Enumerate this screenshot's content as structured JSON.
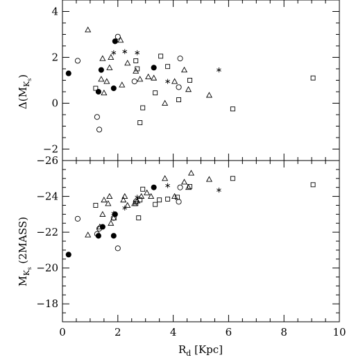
{
  "chart_data": [
    {
      "type": "scatter",
      "panel": "top",
      "ylabel": "Δ(M",
      "ylabel_sub": "K",
      "ylabel_subsub": "s",
      "ylabel_tail": ")",
      "xlim": [
        0,
        10
      ],
      "ylim": [
        -2.5,
        4.5
      ],
      "y_ticks_major": [
        -2,
        0,
        2,
        4
      ],
      "y_ticks_minor": [
        -2.5,
        -1.5,
        -1,
        -0.5,
        0.5,
        1,
        1.5,
        2.5,
        3,
        3.5,
        4.5
      ],
      "y_tick_labels": [
        "−2",
        "0",
        "2",
        "4"
      ],
      "series": [
        {
          "marker": "filled-circle",
          "points": [
            [
              0.22,
              1.3
            ],
            [
              1.3,
              0.5
            ],
            [
              1.4,
              1.45
            ],
            [
              1.85,
              0.65
            ],
            [
              1.9,
              2.7
            ],
            [
              3.3,
              1.55
            ]
          ]
        },
        {
          "marker": "open-circle",
          "points": [
            [
              0.55,
              1.85
            ],
            [
              1.25,
              -0.6
            ],
            [
              1.33,
              -1.15
            ],
            [
              2.0,
              2.9
            ],
            [
              2.6,
              0.95
            ],
            [
              4.2,
              0.7
            ],
            [
              4.25,
              1.95
            ]
          ]
        },
        {
          "marker": "triangle",
          "points": [
            [
              0.92,
              3.2
            ],
            [
              1.4,
              1.05
            ],
            [
              1.45,
              1.95
            ],
            [
              1.5,
              0.45
            ],
            [
              1.6,
              0.95
            ],
            [
              1.7,
              1.55
            ],
            [
              1.75,
              2.0
            ],
            [
              2.1,
              2.75
            ],
            [
              2.15,
              0.8
            ],
            [
              2.35,
              1.75
            ],
            [
              2.65,
              1.4
            ],
            [
              2.8,
              1.05
            ],
            [
              3.1,
              1.15
            ],
            [
              3.3,
              1.1
            ],
            [
              3.7,
              0.0
            ],
            [
              4.05,
              0.95
            ],
            [
              4.4,
              1.45
            ],
            [
              4.55,
              0.6
            ],
            [
              5.3,
              0.35
            ]
          ]
        },
        {
          "marker": "square",
          "points": [
            [
              1.2,
              0.65
            ],
            [
              2.65,
              1.85
            ],
            [
              2.7,
              1.5
            ],
            [
              2.8,
              -0.85
            ],
            [
              2.9,
              -0.2
            ],
            [
              3.35,
              0.45
            ],
            [
              3.55,
              2.05
            ],
            [
              3.8,
              1.6
            ],
            [
              4.2,
              0.15
            ],
            [
              4.6,
              1.0
            ],
            [
              6.15,
              -0.25
            ],
            [
              9.05,
              1.1
            ]
          ]
        },
        {
          "marker": "asterisk",
          "points": [
            [
              1.85,
              2.2
            ],
            [
              2.25,
              2.25
            ],
            [
              2.7,
              2.2
            ],
            [
              3.8,
              0.95
            ],
            [
              5.65,
              1.45
            ]
          ]
        }
      ]
    },
    {
      "type": "scatter",
      "panel": "bottom",
      "ylabel": "M",
      "ylabel_sub": "K",
      "ylabel_subsub": "s",
      "ylabel_tail": " (2MASS)",
      "xlabel": "R",
      "xlabel_sub": "d",
      "xlabel_tail": " [Kpc]",
      "xlim": [
        0,
        10
      ],
      "x_ticks_major": [
        0,
        2,
        4,
        6,
        8,
        10
      ],
      "x_tick_labels": [
        "0",
        "2",
        "4",
        "6",
        "8",
        "10"
      ],
      "ylim": [
        -26,
        -17
      ],
      "y_reversed": true,
      "y_ticks_major": [
        -26,
        -24,
        -22,
        -20,
        -18
      ],
      "y_ticks_minor": [
        -25.5,
        -25,
        -24.5,
        -23.5,
        -23,
        -22.5,
        -21.5,
        -21,
        -20.5,
        -19.5,
        -19,
        -18.5,
        -17.5,
        -17
      ],
      "y_tick_labels": [
        "−26",
        "−24",
        "−22",
        "−20",
        "−18"
      ],
      "series": [
        {
          "marker": "filled-circle",
          "points": [
            [
              0.22,
              -20.75
            ],
            [
              1.3,
              -21.8
            ],
            [
              1.45,
              -22.3
            ],
            [
              1.85,
              -21.8
            ],
            [
              1.9,
              -23.0
            ],
            [
              3.3,
              -24.5
            ]
          ]
        },
        {
          "marker": "open-circle",
          "points": [
            [
              0.55,
              -22.75
            ],
            [
              1.25,
              -21.9
            ],
            [
              1.33,
              -22.2
            ],
            [
              1.85,
              -22.8
            ],
            [
              2.0,
              -21.1
            ],
            [
              2.65,
              -23.7
            ],
            [
              4.2,
              -23.7
            ],
            [
              4.25,
              -24.5
            ]
          ]
        },
        {
          "marker": "triangle",
          "points": [
            [
              0.92,
              -21.85
            ],
            [
              1.35,
              -22.3
            ],
            [
              1.45,
              -23.0
            ],
            [
              1.5,
              -23.8
            ],
            [
              1.65,
              -23.6
            ],
            [
              1.7,
              -24.0
            ],
            [
              1.75,
              -22.5
            ],
            [
              1.85,
              -22.8
            ],
            [
              2.2,
              -23.8
            ],
            [
              2.25,
              -24.0
            ],
            [
              2.35,
              -23.5
            ],
            [
              2.6,
              -23.6
            ],
            [
              2.7,
              -23.75
            ],
            [
              2.85,
              -24.0
            ],
            [
              3.05,
              -24.2
            ],
            [
              3.2,
              -24.0
            ],
            [
              3.7,
              -25.0
            ],
            [
              4.05,
              -24.0
            ],
            [
              4.4,
              -24.8
            ],
            [
              4.55,
              -24.5
            ],
            [
              4.65,
              -25.3
            ],
            [
              5.3,
              -24.95
            ]
          ]
        },
        {
          "marker": "square",
          "points": [
            [
              1.2,
              -23.5
            ],
            [
              2.65,
              -23.6
            ],
            [
              2.75,
              -22.8
            ],
            [
              2.8,
              -23.8
            ],
            [
              2.9,
              -24.4
            ],
            [
              3.35,
              -23.55
            ],
            [
              3.5,
              -23.8
            ],
            [
              3.8,
              -23.85
            ],
            [
              4.15,
              -23.95
            ],
            [
              4.6,
              -24.55
            ],
            [
              6.15,
              -25.0
            ],
            [
              9.05,
              -24.65
            ]
          ]
        },
        {
          "marker": "asterisk",
          "points": [
            [
              1.85,
              -23.05
            ],
            [
              2.25,
              -23.35
            ],
            [
              2.7,
              -23.95
            ],
            [
              3.8,
              -24.6
            ],
            [
              5.65,
              -24.35
            ]
          ]
        }
      ]
    }
  ]
}
